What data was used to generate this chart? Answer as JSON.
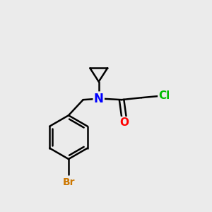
{
  "background_color": "#ebebeb",
  "atom_colors": {
    "N": "#0000ff",
    "O": "#ff0000",
    "Cl": "#00bb00",
    "Br": "#cc7700",
    "C": "#000000"
  },
  "bond_color": "#000000",
  "bond_width": 1.8,
  "figsize": [
    3.0,
    3.0
  ],
  "dpi": 100
}
